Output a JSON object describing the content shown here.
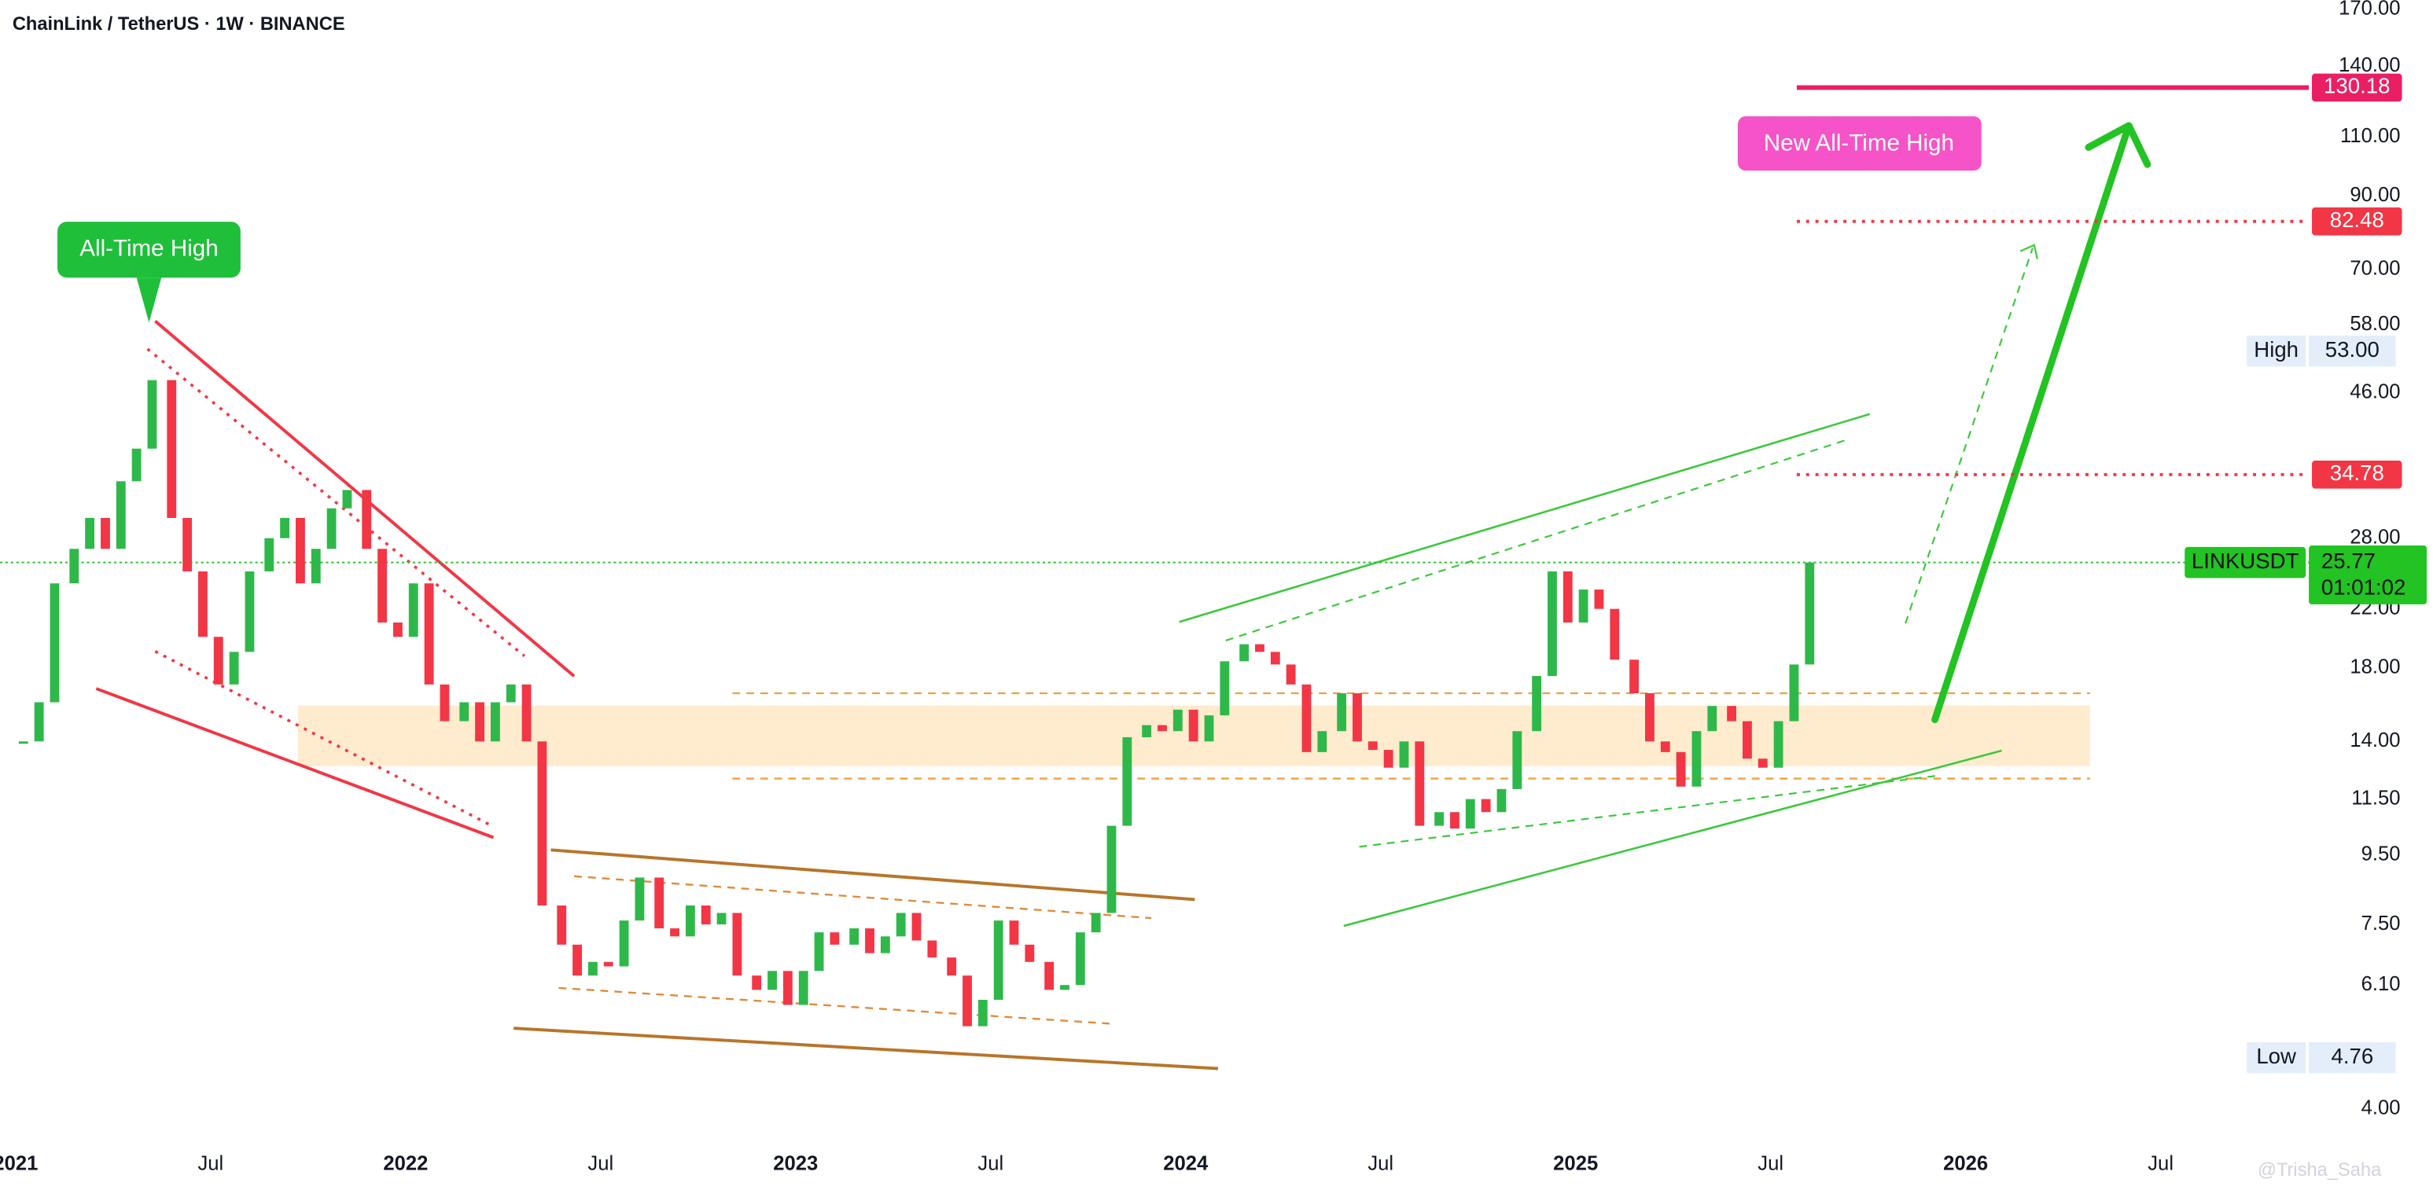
{
  "chart_data": {
    "type": "candlestick",
    "title": "ChainLink / TetherUS · 1W · BINANCE",
    "log_scale": true,
    "grid": false,
    "colors": {
      "up": "#2fb84a",
      "down": "#f23645"
    },
    "x": [
      2021.02,
      2021.06,
      2021.1,
      2021.15,
      2021.19,
      2021.23,
      2021.27,
      2021.31,
      2021.35,
      2021.4,
      2021.44,
      2021.48,
      2021.52,
      2021.56,
      2021.6,
      2021.65,
      2021.69,
      2021.73,
      2021.77,
      2021.81,
      2021.85,
      2021.9,
      2021.94,
      2021.98,
      2022.02,
      2022.06,
      2022.1,
      2022.15,
      2022.19,
      2022.23,
      2022.27,
      2022.31,
      2022.35,
      2022.4,
      2022.44,
      2022.48,
      2022.52,
      2022.56,
      2022.6,
      2022.65,
      2022.69,
      2022.73,
      2022.77,
      2022.81,
      2022.85,
      2022.9,
      2022.94,
      2022.98,
      2023.02,
      2023.06,
      2023.1,
      2023.15,
      2023.19,
      2023.23,
      2023.27,
      2023.31,
      2023.35,
      2023.4,
      2023.44,
      2023.48,
      2023.52,
      2023.56,
      2023.6,
      2023.65,
      2023.69,
      2023.73,
      2023.77,
      2023.81,
      2023.85,
      2023.9,
      2023.94,
      2023.98,
      2024.02,
      2024.06,
      2024.1,
      2024.15,
      2024.19,
      2024.23,
      2024.27,
      2024.31,
      2024.35,
      2024.4,
      2024.44,
      2024.48,
      2024.52,
      2024.56,
      2024.6,
      2024.65,
      2024.69,
      2024.73,
      2024.77,
      2024.81,
      2024.85,
      2024.9,
      2024.94,
      2024.98,
      2025.02,
      2025.06,
      2025.1,
      2025.15,
      2025.19,
      2025.23,
      2025.27,
      2025.31,
      2025.35,
      2025.4,
      2025.44,
      2025.48,
      2025.52,
      2025.56,
      2025.6
    ],
    "close": [
      14,
      16,
      24,
      27,
      30,
      27,
      34,
      38,
      48,
      30,
      25,
      20,
      17,
      19,
      25,
      28,
      30,
      24,
      27,
      31,
      33,
      27,
      21,
      20,
      24,
      17,
      15,
      16,
      14,
      16,
      17,
      14,
      8,
      7,
      6.3,
      6.6,
      6.5,
      7.6,
      8.8,
      7.4,
      7.2,
      8.0,
      7.5,
      7.8,
      6.3,
      6.0,
      6.4,
      5.7,
      6.4,
      7.3,
      7.0,
      7.4,
      6.8,
      7.2,
      7.8,
      7.1,
      6.7,
      6.3,
      5.3,
      5.8,
      7.6,
      7.0,
      6.6,
      6.0,
      6.1,
      7.3,
      7.8,
      10.5,
      14.2,
      14.8,
      14.5,
      15.6,
      14.0,
      15.3,
      18.4,
      19.5,
      19.0,
      18.2,
      17.0,
      13.5,
      14.5,
      16.5,
      14.0,
      13.6,
      12.8,
      14.0,
      10.5,
      11.0,
      10.4,
      11.5,
      11.0,
      11.9,
      14.5,
      17.5,
      25.0,
      21.0,
      23.5,
      22.0,
      18.5,
      16.5,
      14.0,
      13.5,
      12.0,
      14.5,
      15.8,
      15.0,
      13.2,
      12.8,
      15.0,
      18.2,
      25.77
    ],
    "xlim": [
      2020.96,
      2026.88
    ],
    "xticks": [
      2021,
      {
        "value": 2021.5,
        "label": "Jul"
      },
      2022,
      {
        "value": 2022.5,
        "label": "Jul"
      },
      2023,
      {
        "value": 2023.5,
        "label": "Jul"
      },
      2024,
      {
        "value": 2024.5,
        "label": "Jul"
      },
      2025,
      {
        "value": 2025.5,
        "label": "Jul"
      },
      2026,
      {
        "value": 2026.5,
        "label": "Jul"
      }
    ],
    "ylim": [
      3.54,
      175.5
    ],
    "yticks": [
      {
        "value": 170,
        "label": "170.00"
      },
      {
        "value": 140,
        "label": "140.00"
      },
      {
        "value": 110,
        "label": "110.00"
      },
      {
        "value": 90,
        "label": "90.00"
      },
      {
        "value": 70,
        "label": "70.00"
      },
      {
        "value": 58,
        "label": "58.00"
      },
      {
        "value": 46,
        "label": "46.00"
      },
      {
        "value": 28,
        "label": "28.00"
      },
      {
        "value": 22,
        "label": "22.00"
      },
      {
        "value": 18,
        "label": "18.00"
      },
      {
        "value": 14,
        "label": "14.00"
      },
      {
        "value": 11.5,
        "label": "11.50"
      },
      {
        "value": 9.5,
        "label": "9.50"
      },
      {
        "value": 7.5,
        "label": "7.50"
      },
      {
        "value": 6.1,
        "label": "6.10"
      },
      {
        "value": 4,
        "label": "4.00"
      }
    ],
    "price_levels": {
      "values": [
        130.18,
        82.48,
        34.78
      ],
      "colors": [
        "#e91e63",
        "#f23645",
        "#f23645"
      ]
    },
    "extremes": {
      "names": [
        "High",
        "Low"
      ],
      "values": [
        53,
        4.76
      ],
      "value_labels": [
        "53.00",
        "4.76"
      ]
    },
    "last_price": {
      "name": "LINKUSDT",
      "value": 25.77,
      "countdown": "01:01:02",
      "color": "#22c322"
    },
    "annotations": [
      "All-Time High",
      "New All-Time High"
    ],
    "watermark": "@Trisha_Saha"
  }
}
